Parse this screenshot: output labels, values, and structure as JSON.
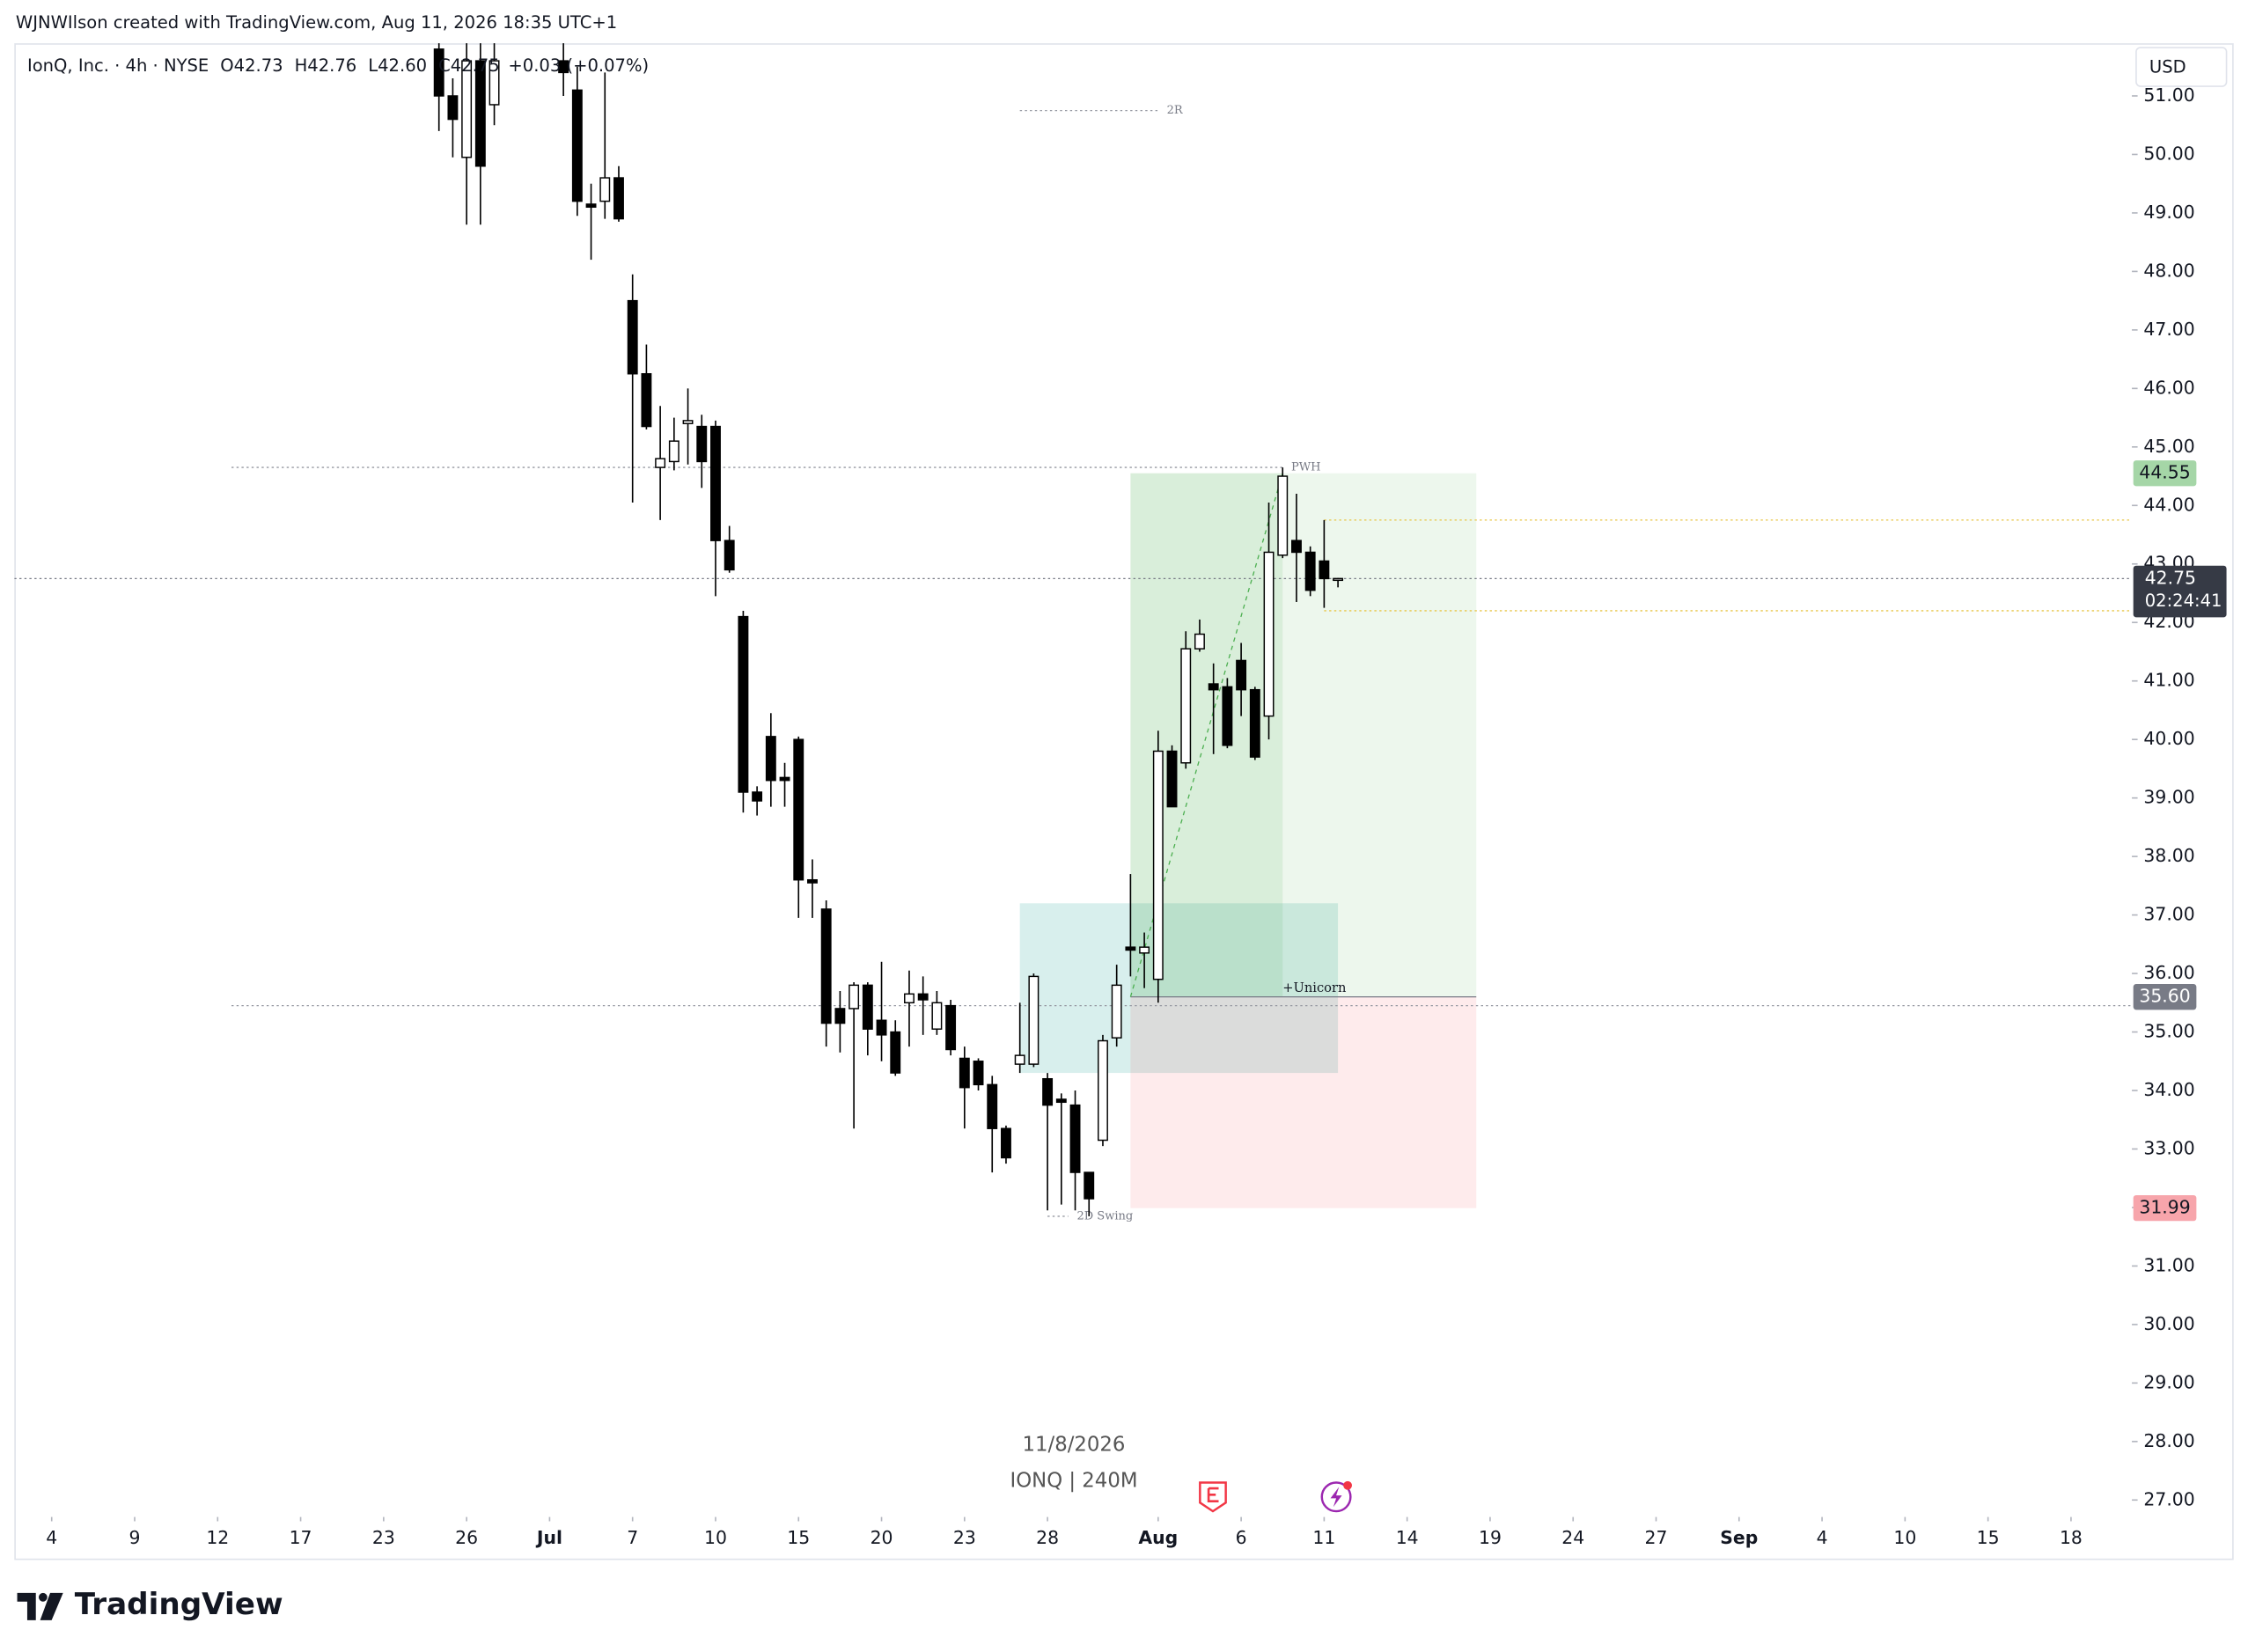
{
  "watermark": "WJNWIlson created with TradingView.com, Aug 11, 2026 18:35 UTC+1",
  "brand": "TradingView",
  "chart_data": {
    "type": "candlestick",
    "title": "IonQ, Inc. · 4h · NYSE",
    "legend": {
      "open": "O42.73",
      "high": "H42.76",
      "low": "L42.60",
      "close": "C42.75",
      "change": "+0.03 (+0.07%)"
    },
    "currency": "USD",
    "watermark_date": "11/8/2026",
    "watermark_symbol": "IONQ | 240M",
    "up_color": "#ffffff",
    "down_color": "#000000",
    "wick_color": "#000000",
    "x": [
      28,
      29,
      30,
      31,
      32,
      37,
      38,
      39,
      40,
      41,
      42,
      43,
      44,
      45,
      46,
      47,
      48,
      49,
      50,
      51,
      52,
      53,
      54,
      55,
      56,
      57,
      58,
      59,
      60,
      61,
      62,
      63,
      64,
      65,
      66,
      67,
      68,
      69,
      70,
      71,
      72,
      73,
      74,
      75,
      76,
      77,
      78,
      79,
      80,
      81,
      82,
      83,
      84,
      85,
      86,
      87,
      88,
      89,
      90,
      91,
      92,
      93
    ],
    "open": [
      51.8,
      51.0,
      49.95,
      51.6,
      50.85,
      51.6,
      51.1,
      49.15,
      49.2,
      49.6,
      47.5,
      46.25,
      44.65,
      44.75,
      45.4,
      45.35,
      45.35,
      43.4,
      42.1,
      39.1,
      40.05,
      39.35,
      40.0,
      37.6,
      37.1,
      35.4,
      35.4,
      35.8,
      35.2,
      35.0,
      35.5,
      35.65,
      35.05,
      35.45,
      34.55,
      34.5,
      34.1,
      33.35,
      34.45,
      34.45,
      34.2,
      33.85,
      33.75,
      32.6,
      33.15,
      34.9,
      36.45,
      36.35,
      35.9,
      39.8,
      39.6,
      41.55,
      40.95,
      40.9,
      41.35,
      40.85,
      40.4,
      43.15,
      43.4,
      43.2,
      43.05,
      42.73
    ],
    "high": [
      52.2,
      51.3,
      52.0,
      52.2,
      52.3,
      52.3,
      51.5,
      49.5,
      51.4,
      49.8,
      47.95,
      46.75,
      45.7,
      45.5,
      46.0,
      45.55,
      45.45,
      43.65,
      42.2,
      39.2,
      40.45,
      39.6,
      40.05,
      37.95,
      37.25,
      35.7,
      35.85,
      35.85,
      36.2,
      35.2,
      36.05,
      35.95,
      35.7,
      35.55,
      34.75,
      34.55,
      34.25,
      33.4,
      35.5,
      36.0,
      34.3,
      33.95,
      34.0,
      32.6,
      34.95,
      36.15,
      37.7,
      36.7,
      40.15,
      39.9,
      41.85,
      42.05,
      41.3,
      41.05,
      41.65,
      40.9,
      44.05,
      44.65,
      44.2,
      43.3,
      43.75,
      42.76
    ],
    "low": [
      50.4,
      49.95,
      48.8,
      48.8,
      50.5,
      51.0,
      48.95,
      48.2,
      48.9,
      48.85,
      44.05,
      45.3,
      43.75,
      44.6,
      44.7,
      44.3,
      42.45,
      42.85,
      38.75,
      38.7,
      38.85,
      38.85,
      36.95,
      36.95,
      34.75,
      34.65,
      33.35,
      34.6,
      34.5,
      34.25,
      34.75,
      34.95,
      34.95,
      34.6,
      33.35,
      34.0,
      32.6,
      32.75,
      34.3,
      34.4,
      31.95,
      32.05,
      31.95,
      31.85,
      33.05,
      34.75,
      35.95,
      35.75,
      35.5,
      38.85,
      39.5,
      41.5,
      39.75,
      39.85,
      40.4,
      39.65,
      40.0,
      43.1,
      42.35,
      42.45,
      42.25,
      42.6
    ],
    "close": [
      51.0,
      50.6,
      51.6,
      49.8,
      51.6,
      51.4,
      49.2,
      49.1,
      49.6,
      48.9,
      46.25,
      45.35,
      44.8,
      45.1,
      45.45,
      44.75,
      43.4,
      42.9,
      39.1,
      38.95,
      39.3,
      39.3,
      37.6,
      37.55,
      35.15,
      35.15,
      35.8,
      35.05,
      34.95,
      34.3,
      35.65,
      35.55,
      35.5,
      34.7,
      34.05,
      34.1,
      33.35,
      32.85,
      34.6,
      35.95,
      33.75,
      33.8,
      32.6,
      32.15,
      34.85,
      35.8,
      36.4,
      36.45,
      39.8,
      38.85,
      41.55,
      41.8,
      40.85,
      39.9,
      40.85,
      39.7,
      43.2,
      44.5,
      43.2,
      42.55,
      42.75,
      42.75
    ],
    "xlim": [
      -2.7,
      150.4
    ],
    "xticks": [
      {
        "value": 0,
        "label": "4"
      },
      {
        "value": 6,
        "label": "9"
      },
      {
        "value": 12,
        "label": "12"
      },
      {
        "value": 18,
        "label": "17"
      },
      {
        "value": 24,
        "label": "23"
      },
      {
        "value": 30,
        "label": "26"
      },
      {
        "value": 36,
        "label": "Jul"
      },
      {
        "value": 42,
        "label": "7"
      },
      {
        "value": 48,
        "label": "10"
      },
      {
        "value": 54,
        "label": "15"
      },
      {
        "value": 60,
        "label": "20"
      },
      {
        "value": 66,
        "label": "23"
      },
      {
        "value": 72,
        "label": "28"
      },
      {
        "value": 80,
        "label": "Aug"
      },
      {
        "value": 86,
        "label": "6"
      },
      {
        "value": 92,
        "label": "11"
      },
      {
        "value": 98,
        "label": "14"
      },
      {
        "value": 104,
        "label": "19"
      },
      {
        "value": 110,
        "label": "24"
      },
      {
        "value": 116,
        "label": "27"
      },
      {
        "value": 122,
        "label": "Sep"
      },
      {
        "value": 128,
        "label": "4"
      },
      {
        "value": 134,
        "label": "10"
      },
      {
        "value": 140,
        "label": "15"
      },
      {
        "value": 146,
        "label": "18"
      }
    ],
    "ylim": [
      26.71,
      51.9
    ],
    "yticks": [
      {
        "value": 27,
        "label": "27.00"
      },
      {
        "value": 28,
        "label": "28.00"
      },
      {
        "value": 29,
        "label": "29.00"
      },
      {
        "value": 30,
        "label": "30.00"
      },
      {
        "value": 31,
        "label": "31.00"
      },
      {
        "value": 32,
        "label": "32.00"
      },
      {
        "value": 33,
        "label": "33.00"
      },
      {
        "value": 34,
        "label": "34.00"
      },
      {
        "value": 35,
        "label": "35.00"
      },
      {
        "value": 36,
        "label": "36.00"
      },
      {
        "value": 37,
        "label": "37.00"
      },
      {
        "value": 38,
        "label": "38.00"
      },
      {
        "value": 39,
        "label": "39.00"
      },
      {
        "value": 40,
        "label": "40.00"
      },
      {
        "value": 41,
        "label": "41.00"
      },
      {
        "value": 42,
        "label": "42.00"
      },
      {
        "value": 43,
        "label": "43.00"
      },
      {
        "value": 44,
        "label": "44.00"
      },
      {
        "value": 45,
        "label": "45.00"
      },
      {
        "value": 46,
        "label": "46.00"
      },
      {
        "value": 47,
        "label": "47.00"
      },
      {
        "value": 48,
        "label": "48.00"
      },
      {
        "value": 49,
        "label": "49.00"
      },
      {
        "value": 50,
        "label": "50.00"
      },
      {
        "value": 51,
        "label": "51.00"
      }
    ],
    "last_price": 42.75,
    "countdown": "02:24:41",
    "position": {
      "target": 44.55,
      "entry": {
        "value": 35.6,
        "label": "35.60"
      },
      "stop": 31.99,
      "x": [
        78,
        103
      ],
      "fill_end": 89,
      "profit_color": "#4caf50",
      "loss_color": "#f23645"
    },
    "zones": [
      {
        "x": [
          70,
          93
        ],
        "y": [
          34.3,
          37.2
        ],
        "color": "#26a69a"
      }
    ],
    "trendline": {
      "x": [
        78,
        89
      ],
      "y": [
        35.6,
        44.55
      ],
      "color": "#4caf50"
    },
    "levels": [
      {
        "label": "2R",
        "value": 50.75,
        "x": [
          70,
          80
        ],
        "color": "#9598a1"
      },
      {
        "label": "PWH",
        "value": 44.65,
        "x": [
          13,
          89
        ],
        "color": "#9598a1"
      },
      {
        "label": "+Unicorn",
        "value": 35.45,
        "x": [
          13,
          150.4
        ],
        "color": "#9598a1"
      },
      {
        "label": "2D Swing",
        "value": 31.85,
        "x": [
          72,
          73.5
        ],
        "color": "#9598a1"
      },
      {
        "value": 43.75,
        "x": [
          92,
          150.4
        ],
        "color": "#e8c547"
      },
      {
        "value": 42.2,
        "x": [
          92,
          150.4
        ],
        "color": "#e8c547"
      }
    ]
  }
}
